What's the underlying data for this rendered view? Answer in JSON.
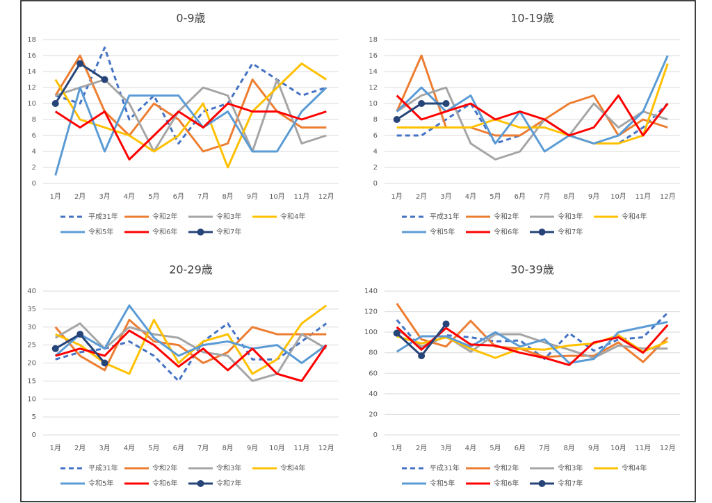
{
  "chart_data": [
    {
      "type": "line",
      "title": "0-9歳",
      "categories": [
        "1月",
        "2月",
        "3月",
        "4月",
        "5月",
        "6月",
        "7月",
        "8月",
        "9月",
        "10月",
        "11月",
        "12月"
      ],
      "ylim": [
        0,
        18
      ],
      "yticks": [
        0,
        2,
        4,
        6,
        8,
        10,
        12,
        14,
        16,
        18
      ],
      "grid": true,
      "series": [
        {
          "name": "平成31年",
          "color": "#4472c4",
          "dash": true,
          "values": [
            11,
            10,
            17,
            8,
            11,
            5,
            9,
            10,
            15,
            13,
            11,
            12
          ]
        },
        {
          "name": "令和2年",
          "color": "#ed7d31",
          "values": [
            11,
            16,
            9,
            6,
            10,
            8,
            4,
            5,
            13,
            9,
            7,
            7
          ]
        },
        {
          "name": "令和3年",
          "color": "#a5a5a5",
          "values": [
            11,
            12,
            13,
            10,
            4,
            9,
            12,
            11,
            4,
            13,
            5,
            6
          ]
        },
        {
          "name": "令和4年",
          "color": "#ffc000",
          "values": [
            13,
            8,
            7,
            6,
            4,
            6,
            10,
            2,
            9,
            12,
            15,
            13
          ]
        },
        {
          "name": "令和5年",
          "color": "#5b9bd5",
          "values": [
            1,
            12,
            4,
            11,
            11,
            11,
            7,
            9,
            4,
            4,
            9,
            12
          ]
        },
        {
          "name": "令和6年",
          "color": "#ff0000",
          "values": [
            9,
            7,
            9,
            3,
            6,
            9,
            7,
            10,
            9,
            9,
            8,
            9
          ]
        },
        {
          "name": "令和7年",
          "color": "#264478",
          "marker": true,
          "values": [
            10,
            15,
            13,
            null,
            null,
            null,
            null,
            null,
            null,
            null,
            null,
            null
          ]
        }
      ]
    },
    {
      "type": "line",
      "title": "10-19歳",
      "categories": [
        "1月",
        "2月",
        "3月",
        "4月",
        "5月",
        "6月",
        "7月",
        "8月",
        "9月",
        "10月",
        "11月",
        "12月"
      ],
      "ylim": [
        0,
        18
      ],
      "yticks": [
        0,
        2,
        4,
        6,
        8,
        10,
        12,
        14,
        16,
        18
      ],
      "grid": true,
      "series": [
        {
          "name": "平成31年",
          "color": "#4472c4",
          "dash": true,
          "values": [
            6,
            6,
            8,
            10,
            5,
            6,
            8,
            6,
            5,
            5,
            7,
            10
          ]
        },
        {
          "name": "令和2年",
          "color": "#ed7d31",
          "values": [
            9,
            16,
            7,
            7,
            6,
            6,
            8,
            10,
            11,
            6,
            8,
            7
          ]
        },
        {
          "name": "令和3年",
          "color": "#a5a5a5",
          "values": [
            9,
            11,
            12,
            5,
            3,
            4,
            8,
            6,
            10,
            7,
            9,
            8
          ]
        },
        {
          "name": "令和4年",
          "color": "#ffc000",
          "values": [
            7,
            7,
            7,
            7,
            8,
            7,
            7,
            6,
            5,
            5,
            6,
            15
          ]
        },
        {
          "name": "令和5年",
          "color": "#5b9bd5",
          "values": [
            9,
            12,
            9,
            11,
            5,
            9,
            4,
            6,
            5,
            6,
            9,
            16
          ]
        },
        {
          "name": "令和6年",
          "color": "#ff0000",
          "values": [
            11,
            8,
            9,
            10,
            8,
            9,
            8,
            6,
            7,
            11,
            6,
            10
          ]
        },
        {
          "name": "令和7年",
          "color": "#264478",
          "marker": true,
          "values": [
            8,
            10,
            10,
            null,
            null,
            null,
            null,
            null,
            null,
            null,
            null,
            null
          ]
        }
      ]
    },
    {
      "type": "line",
      "title": "20-29歳",
      "categories": [
        "1月",
        "2月",
        "3月",
        "4月",
        "5月",
        "6月",
        "7月",
        "8月",
        "9月",
        "10月",
        "11月",
        "12月"
      ],
      "ylim": [
        0,
        40
      ],
      "yticks": [
        0,
        5,
        10,
        15,
        20,
        25,
        30,
        35,
        40
      ],
      "grid": true,
      "series": [
        {
          "name": "平成31年",
          "color": "#4472c4",
          "dash": true,
          "values": [
            21,
            23,
            24,
            26,
            22,
            15,
            26,
            31,
            21,
            21,
            26,
            31
          ]
        },
        {
          "name": "令和2年",
          "color": "#ed7d31",
          "values": [
            30,
            22,
            18,
            32,
            26,
            25,
            20,
            23,
            30,
            28,
            28,
            28
          ]
        },
        {
          "name": "令和3年",
          "color": "#a5a5a5",
          "values": [
            27,
            31,
            24,
            30,
            28,
            27,
            23,
            22,
            15,
            17,
            28,
            24
          ]
        },
        {
          "name": "令和4年",
          "color": "#ffc000",
          "values": [
            28,
            25,
            20,
            17,
            32,
            20,
            26,
            28,
            17,
            21,
            31,
            36
          ]
        },
        {
          "name": "令和5年",
          "color": "#5b9bd5",
          "values": [
            22,
            28,
            24,
            36,
            27,
            22,
            25,
            26,
            24,
            25,
            20,
            25
          ]
        },
        {
          "name": "令和6年",
          "color": "#ff0000",
          "values": [
            22,
            24,
            22,
            29,
            25,
            19,
            24,
            18,
            24,
            17,
            15,
            25
          ]
        },
        {
          "name": "令和7年",
          "color": "#264478",
          "marker": true,
          "values": [
            24,
            28,
            20,
            null,
            null,
            null,
            null,
            null,
            null,
            null,
            null,
            null
          ]
        }
      ]
    },
    {
      "type": "line",
      "title": "30-39歳",
      "categories": [
        "1月",
        "2月",
        "3月",
        "4月",
        "5月",
        "6月",
        "7月",
        "8月",
        "9月",
        "10月",
        "11月",
        "12月"
      ],
      "ylim": [
        0,
        140
      ],
      "yticks": [
        0,
        20,
        40,
        60,
        80,
        100,
        120,
        140
      ],
      "grid": true,
      "series": [
        {
          "name": "平成31年",
          "color": "#4472c4",
          "dash": true,
          "values": [
            112,
            84,
            97,
            95,
            91,
            92,
            74,
            99,
            82,
            93,
            95,
            119
          ]
        },
        {
          "name": "令和2年",
          "color": "#ed7d31",
          "values": [
            128,
            93,
            86,
            111,
            86,
            84,
            76,
            77,
            77,
            90,
            71,
            95
          ]
        },
        {
          "name": "令和3年",
          "color": "#a5a5a5",
          "values": [
            103,
            86,
            96,
            81,
            98,
            98,
            90,
            83,
            75,
            87,
            84,
            84
          ]
        },
        {
          "name": "令和4年",
          "color": "#ffc000",
          "values": [
            96,
            89,
            95,
            84,
            75,
            84,
            83,
            87,
            89,
            97,
            81,
            91
          ]
        },
        {
          "name": "令和5年",
          "color": "#5b9bd5",
          "values": [
            81,
            96,
            96,
            86,
            100,
            86,
            93,
            70,
            74,
            100,
            105,
            110
          ]
        },
        {
          "name": "令和6年",
          "color": "#ff0000",
          "values": [
            105,
            83,
            104,
            88,
            87,
            80,
            75,
            68,
            90,
            95,
            80,
            107
          ]
        },
        {
          "name": "令和7年",
          "color": "#264478",
          "marker": true,
          "values": [
            99,
            77,
            108,
            null,
            null,
            null,
            null,
            null,
            null,
            null,
            null,
            null
          ]
        }
      ]
    }
  ]
}
